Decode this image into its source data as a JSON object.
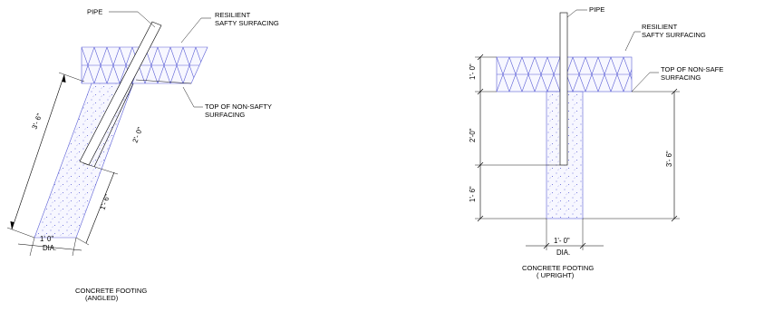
{
  "angled": {
    "label_pipe": "PIPE",
    "label_resilient_1": "RESILIENT",
    "label_resilient_2": "SAFTY SURFACING",
    "label_top_1": "TOP OF NON-SAFTY",
    "label_top_2": "SURFACING",
    "dim_total": "3'- 6\"",
    "dim_upper": "2'- 0\"",
    "dim_lower": "1'- 6\"",
    "dim_width": "1' 0\"",
    "dim_width_sub": "DIA.",
    "caption_1": "CONCRETE FOOTING",
    "caption_2": "(ANGLED)"
  },
  "upright": {
    "label_pipe": "PIPE",
    "label_resilient_1": "RESILIENT",
    "label_resilient_2": "SAFTY SURFACING",
    "label_top_1": "TOP OF NON-SAFE",
    "label_top_2": "SURFACING",
    "dim_surface": "1'- 0\"",
    "dim_upper": "2'-0\"",
    "dim_lower": "1'- 6\"",
    "dim_total": "3'- 6\"",
    "dim_width": "1'- 0\"",
    "dim_width_sub": "DIA.",
    "caption_1": "CONCRETE FOOTING",
    "caption_2": "( UPRIGHT)"
  },
  "colors": {
    "hatch": "#5b5fd6",
    "line": "#000000",
    "background": "#ffffff"
  }
}
